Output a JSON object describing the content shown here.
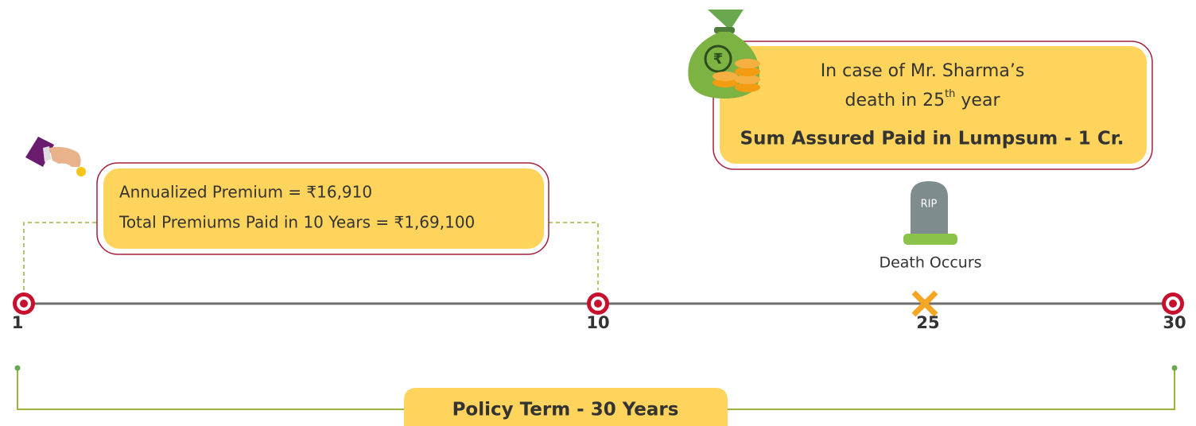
{
  "premium_box": {
    "lines": [
      "Annualized Premium = ₹16,910",
      "Total Premiums Paid in 10 Years = ₹1,69,100"
    ]
  },
  "death_box": {
    "line1": "In case of Mr. Sharma’s",
    "line2": {
      "before": "death in 25",
      "sup": "th",
      "after": " year"
    },
    "payout": "Sum Assured Paid in Lumpsum - 1 Cr."
  },
  "tombstone": {
    "text": "RIP",
    "caption": "Death Occurs"
  },
  "timeline": {
    "points": [
      "1",
      "10",
      "25",
      "30"
    ]
  },
  "policy_term": "Policy Term - 30 Years"
}
